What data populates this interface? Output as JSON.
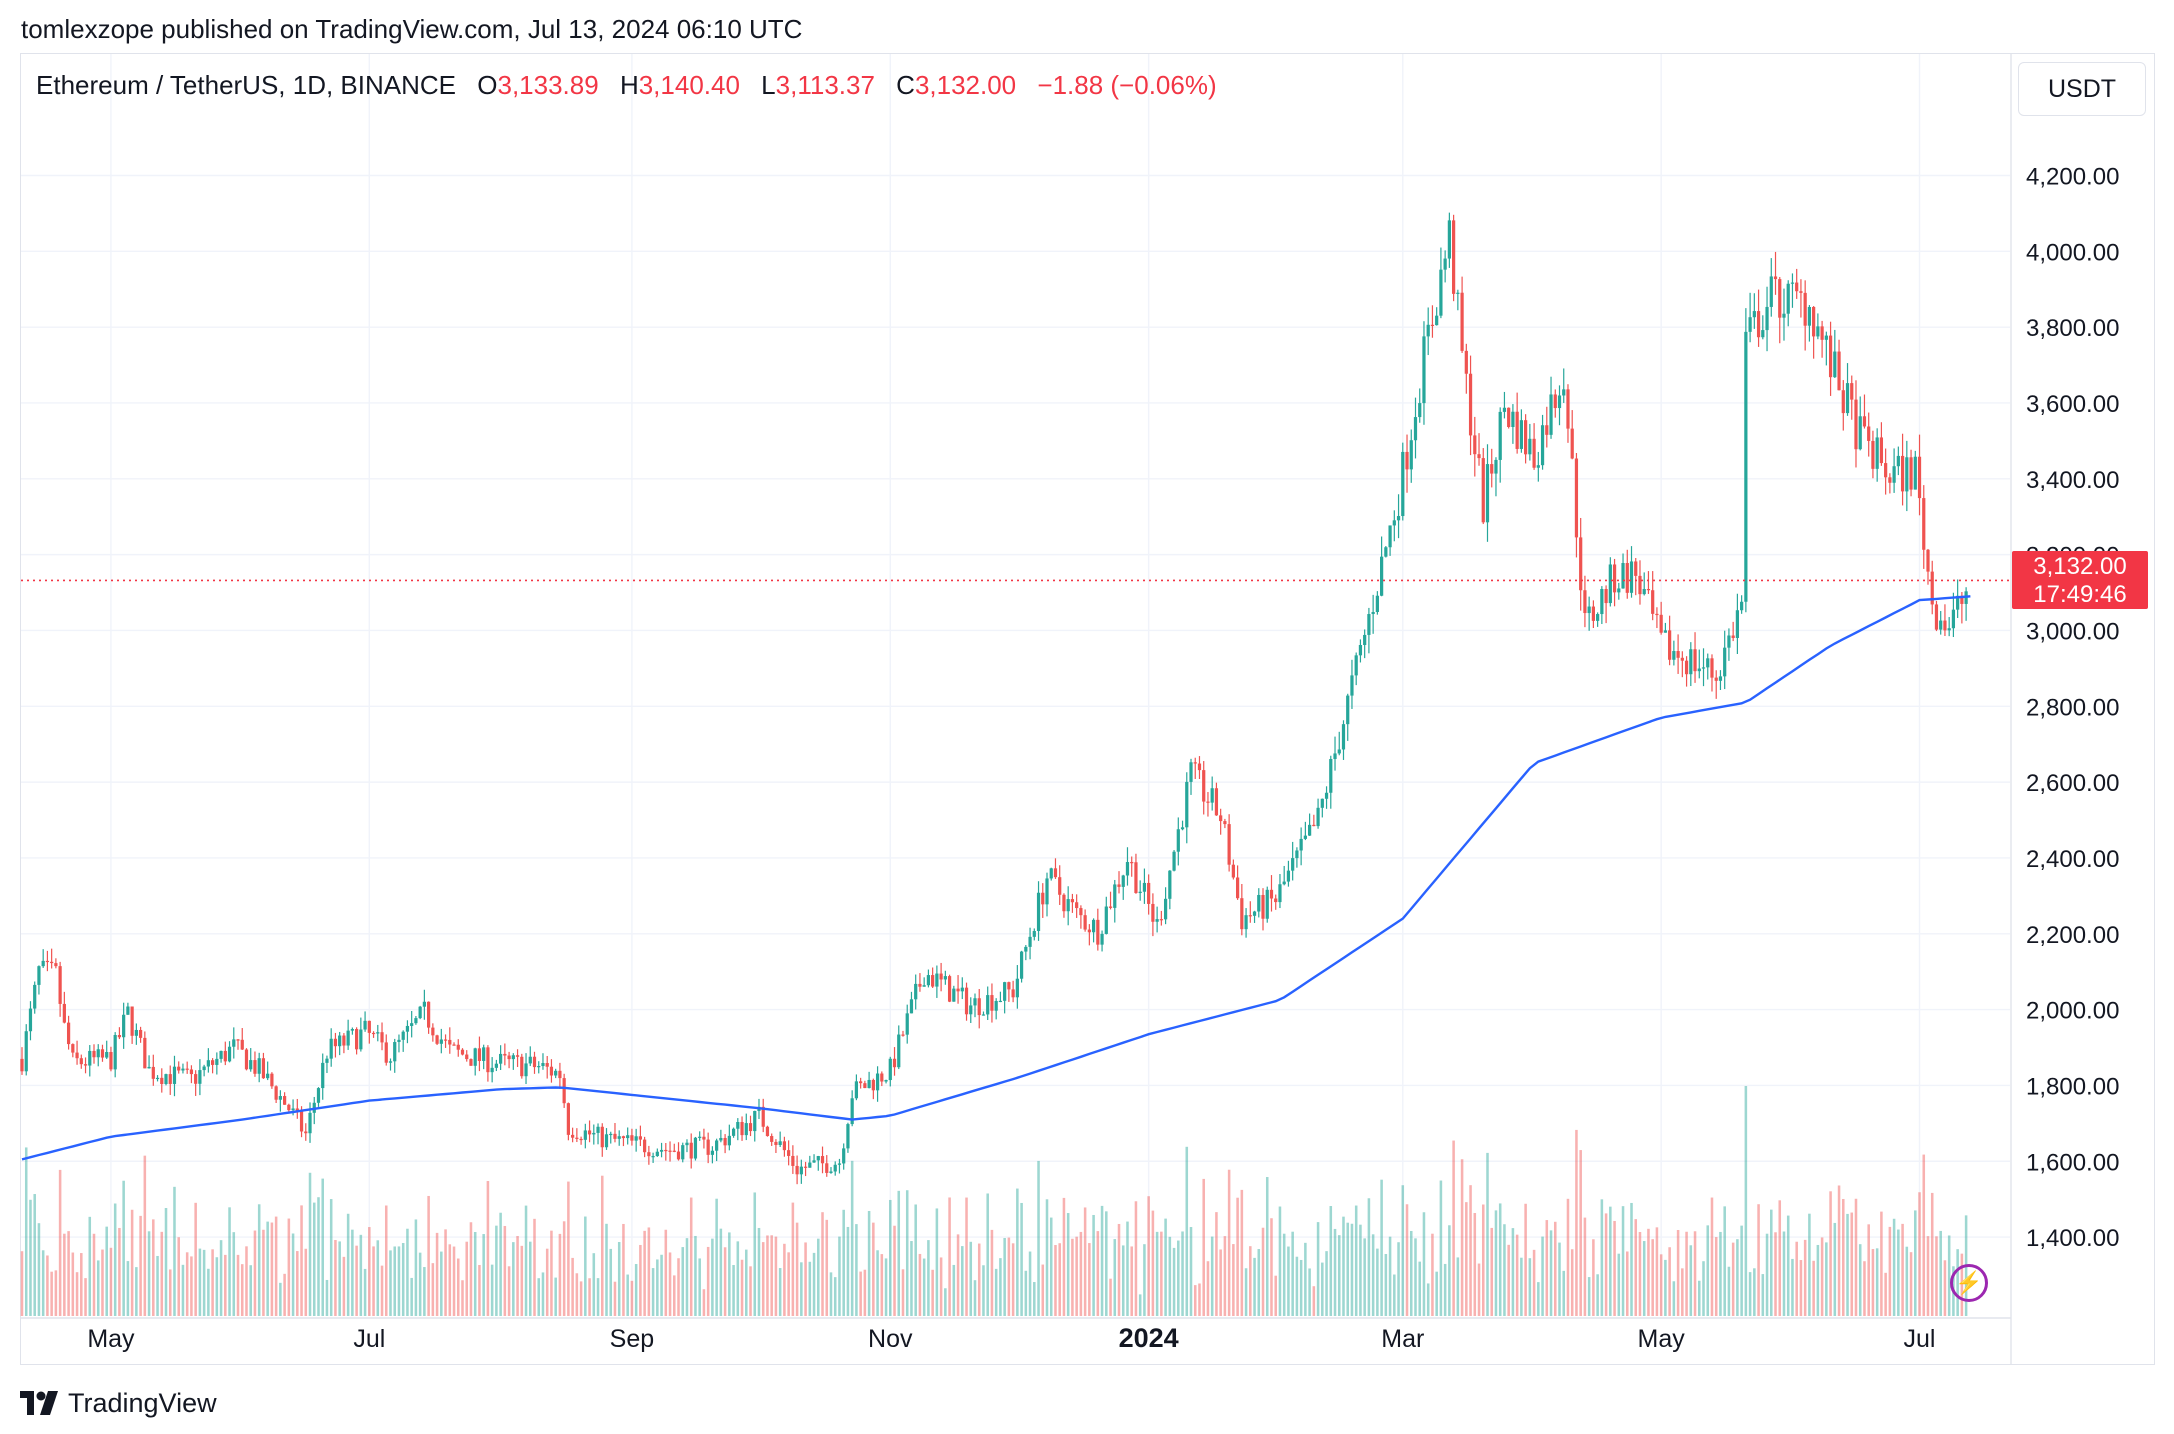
{
  "publisher": "tomlexzope published on TradingView.com, Jul 13, 2024 06:10 UTC",
  "legend": {
    "symbol": "Ethereum / TetherUS, 1D, BINANCE",
    "o_label": "O",
    "open": "3,133.89",
    "h_label": "H",
    "high": "3,140.40",
    "l_label": "L",
    "low": "3,113.37",
    "c_label": "C",
    "close": "3,132.00",
    "change": "−1.88 (−0.06%)"
  },
  "currency": "USDT",
  "last_price": {
    "price": "3,132.00",
    "countdown": "17:49:46"
  },
  "brand": "TradingView",
  "colors": {
    "up": "#26a69a",
    "down": "#ef5350",
    "ma": "#2962ff",
    "last": "#f23645",
    "grid": "#f0f3fa"
  },
  "chart_data": {
    "type": "candlestick",
    "symbol": "Ethereum / TetherUS",
    "interval": "1D",
    "exchange": "BINANCE",
    "y_ticks": [
      "4,200.00",
      "4,000.00",
      "3,800.00",
      "3,600.00",
      "3,400.00",
      "3,200.00",
      "3,000.00",
      "2,800.00",
      "2,600.00",
      "2,400.00",
      "2,200.00",
      "2,000.00",
      "1,800.00",
      "1,600.00",
      "1,400.00"
    ],
    "ylim": [
      1300,
      4320
    ],
    "x_ticks": [
      {
        "label": "May",
        "date": "2023-05-01"
      },
      {
        "label": "Jul",
        "date": "2023-07-01"
      },
      {
        "label": "Sep",
        "date": "2023-09-01"
      },
      {
        "label": "Nov",
        "date": "2023-11-01"
      },
      {
        "label": "2024",
        "date": "2024-01-01",
        "bold": true
      },
      {
        "label": "Mar",
        "date": "2024-03-01"
      },
      {
        "label": "May",
        "date": "2024-05-01"
      },
      {
        "label": "Jul",
        "date": "2024-07-01"
      }
    ],
    "xlim": [
      "2023-04-10",
      "2024-07-20"
    ],
    "anchors": [
      [
        "2023-04-10",
        1870
      ],
      [
        "2023-04-14",
        2100
      ],
      [
        "2023-04-18",
        2090
      ],
      [
        "2023-04-20",
        1950
      ],
      [
        "2023-04-22",
        1860
      ],
      [
        "2023-05-01",
        1870
      ],
      [
        "2023-05-05",
        1990
      ],
      [
        "2023-05-10",
        1840
      ],
      [
        "2023-05-20",
        1815
      ],
      [
        "2023-05-30",
        1900
      ],
      [
        "2023-06-05",
        1840
      ],
      [
        "2023-06-12",
        1740
      ],
      [
        "2023-06-16",
        1670
      ],
      [
        "2023-06-21",
        1890
      ],
      [
        "2023-06-30",
        1940
      ],
      [
        "2023-07-06",
        1880
      ],
      [
        "2023-07-14",
        1990
      ],
      [
        "2023-07-20",
        1890
      ],
      [
        "2023-07-31",
        1860
      ],
      [
        "2023-08-10",
        1850
      ],
      [
        "2023-08-15",
        1830
      ],
      [
        "2023-08-17",
        1690
      ],
      [
        "2023-08-25",
        1660
      ],
      [
        "2023-09-10",
        1630
      ],
      [
        "2023-09-20",
        1640
      ],
      [
        "2023-10-01",
        1720
      ],
      [
        "2023-10-10",
        1580
      ],
      [
        "2023-10-20",
        1600
      ],
      [
        "2023-10-23",
        1780
      ],
      [
        "2023-11-01",
        1840
      ],
      [
        "2023-11-09",
        2100
      ],
      [
        "2023-11-20",
        2010
      ],
      [
        "2023-11-30",
        2050
      ],
      [
        "2023-12-08",
        2350
      ],
      [
        "2023-12-15",
        2250
      ],
      [
        "2023-12-20",
        2210
      ],
      [
        "2023-12-27",
        2400
      ],
      [
        "2024-01-03",
        2220
      ],
      [
        "2024-01-11",
        2620
      ],
      [
        "2024-01-18",
        2510
      ],
      [
        "2024-01-23",
        2240
      ],
      [
        "2024-01-31",
        2290
      ],
      [
        "2024-02-10",
        2500
      ],
      [
        "2024-02-20",
        2940
      ],
      [
        "2024-02-29",
        3360
      ],
      [
        "2024-03-06",
        3720
      ],
      [
        "2024-03-12",
        4040
      ],
      [
        "2024-03-15",
        3720
      ],
      [
        "2024-03-20",
        3330
      ],
      [
        "2024-03-25",
        3590
      ],
      [
        "2024-04-01",
        3460
      ],
      [
        "2024-04-08",
        3690
      ],
      [
        "2024-04-13",
        3010
      ],
      [
        "2024-04-20",
        3140
      ],
      [
        "2024-04-25",
        3150
      ],
      [
        "2024-05-01",
        2960
      ],
      [
        "2024-05-10",
        2910
      ],
      [
        "2024-05-14",
        2880
      ],
      [
        "2024-05-20",
        3070
      ],
      [
        "2024-05-21",
        3760
      ],
      [
        "2024-05-27",
        3880
      ],
      [
        "2024-06-05",
        3860
      ],
      [
        "2024-06-10",
        3700
      ],
      [
        "2024-06-17",
        3510
      ],
      [
        "2024-06-24",
        3410
      ],
      [
        "2024-06-30",
        3420
      ],
      [
        "2024-07-04",
        3070
      ],
      [
        "2024-07-08",
        3010
      ],
      [
        "2024-07-12",
        3100
      ],
      [
        "2024-07-13",
        3132
      ]
    ],
    "ma_anchors": [
      [
        "2023-04-10",
        1605
      ],
      [
        "2023-05-01",
        1665
      ],
      [
        "2023-06-01",
        1710
      ],
      [
        "2023-07-01",
        1760
      ],
      [
        "2023-08-01",
        1790
      ],
      [
        "2023-08-15",
        1795
      ],
      [
        "2023-09-01",
        1775
      ],
      [
        "2023-10-01",
        1740
      ],
      [
        "2023-10-23",
        1710
      ],
      [
        "2023-11-01",
        1720
      ],
      [
        "2023-12-01",
        1820
      ],
      [
        "2024-01-01",
        1935
      ],
      [
        "2024-02-01",
        2025
      ],
      [
        "2024-03-01",
        2240
      ],
      [
        "2024-04-01",
        2650
      ],
      [
        "2024-05-01",
        2770
      ],
      [
        "2024-05-21",
        2810
      ],
      [
        "2024-06-10",
        2960
      ],
      [
        "2024-07-01",
        3080
      ],
      [
        "2024-07-13",
        3090
      ]
    ],
    "last": {
      "price": 3132.0,
      "open": 3133.89,
      "high": 3140.4,
      "low": 3113.37,
      "change": -1.88,
      "change_pct": -0.06
    }
  }
}
